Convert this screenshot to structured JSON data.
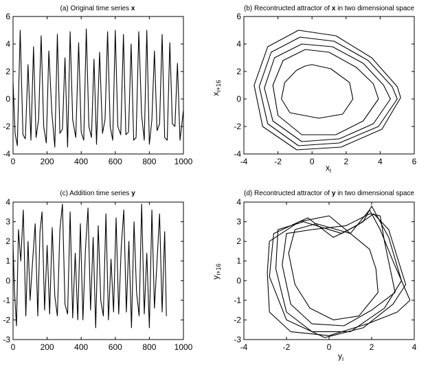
{
  "chart_data": [
    {
      "type": "line",
      "title_prefix": "(a) Original time series",
      "title_symbol": "x",
      "xlabel": "",
      "ylabel": "",
      "xlim": [
        0,
        1000
      ],
      "ylim": [
        -4,
        6
      ],
      "xticks": [
        0,
        200,
        400,
        600,
        800,
        1000
      ],
      "yticks": [
        -4,
        -2,
        0,
        2,
        4,
        6
      ],
      "grid": false,
      "series": [
        {
          "x": [
            0,
            12,
            25,
            42,
            58,
            72,
            88,
            105,
            120,
            135,
            150,
            165,
            180,
            195,
            210,
            228,
            245,
            260,
            275,
            290,
            305,
            320,
            335,
            350,
            368,
            385,
            400,
            415,
            430,
            445,
            460,
            475,
            490,
            508,
            525,
            540,
            555,
            570,
            585,
            600,
            615,
            632,
            648,
            662,
            678,
            693,
            708,
            722,
            738,
            755,
            770,
            785,
            800,
            815,
            830,
            845,
            860,
            875,
            890,
            905,
            920,
            935,
            950,
            965,
            980,
            1000
          ],
          "y": [
            1.2,
            -2.5,
            -3.4,
            5.0,
            -2.6,
            -2.9,
            2.5,
            -3.0,
            3.8,
            -2.8,
            -1.5,
            4.6,
            -2.0,
            -3.2,
            3.5,
            -1.0,
            -3.5,
            4.7,
            -2.5,
            -2.2,
            3.0,
            -3.5,
            4.9,
            -1.5,
            -2.8,
            4.1,
            -2.4,
            -3.0,
            5.1,
            -2.0,
            -2.8,
            2.9,
            -3.3,
            3.4,
            -2.5,
            -1.5,
            4.9,
            -2.0,
            -3.0,
            5.0,
            -2.0,
            -2.6,
            4.7,
            -2.6,
            -2.4,
            4.0,
            -3.0,
            -2.8,
            4.9,
            -1.2,
            -3.0,
            5.0,
            -3.3,
            -1.5,
            3.5,
            -2.3,
            -1.8,
            4.7,
            -2.8,
            -3.0,
            4.1,
            -1.8,
            -2.0,
            2.6,
            -3.0,
            -0.8
          ]
        }
      ]
    },
    {
      "type": "line",
      "title_prefix": "(b) Recontructed attractor of",
      "title_symbol": "x",
      "title_suffix": "in two dimensional space",
      "xlabel_main": "x",
      "xlabel_sub": "i",
      "ylabel_main": "x",
      "ylabel_sub": "i+16",
      "xlim": [
        -4,
        6
      ],
      "ylim": [
        -4,
        6
      ],
      "xticks": [
        -4,
        -2,
        0,
        2,
        4,
        6
      ],
      "yticks": [
        -4,
        -2,
        0,
        2,
        4,
        6
      ],
      "grid": false,
      "series": [
        {
          "x": [
            -0.4,
            0.0,
            1.1,
            2.2,
            2.4,
            1.8,
            0.4,
            -1.3,
            -1.8,
            -1.6,
            -0.9,
            -0.4
          ],
          "y": [
            2.4,
            2.5,
            2.2,
            1.2,
            0.0,
            -1.1,
            -1.4,
            -1.0,
            0.0,
            1.2,
            2.1,
            2.4
          ],
          "closed": true
        },
        {
          "x": [
            -0.4,
            1.0,
            2.6,
            3.6,
            3.9,
            3.0,
            1.4,
            -0.6,
            -2.0,
            -2.3,
            -1.7,
            -0.4
          ],
          "y": [
            3.6,
            3.4,
            2.3,
            1.1,
            0.0,
            -1.6,
            -2.6,
            -2.6,
            -1.2,
            1.0,
            2.8,
            3.6
          ],
          "closed": true
        },
        {
          "x": [
            -0.6,
            1.2,
            3.0,
            4.2,
            4.6,
            3.6,
            1.6,
            -0.6,
            -2.3,
            -2.8,
            -2.2,
            -0.6
          ],
          "y": [
            4.0,
            3.8,
            2.6,
            1.0,
            0.0,
            -1.8,
            -2.9,
            -3.1,
            -1.6,
            0.8,
            3.0,
            4.0
          ],
          "closed": true
        },
        {
          "x": [
            -0.7,
            1.3,
            3.3,
            4.7,
            5.0,
            3.9,
            1.6,
            -0.8,
            -2.6,
            -3.1,
            -2.4,
            -0.7
          ],
          "y": [
            4.5,
            4.2,
            2.8,
            0.9,
            0.0,
            -2.0,
            -3.2,
            -3.4,
            -1.8,
            0.9,
            3.4,
            4.5
          ],
          "closed": true
        },
        {
          "x": [
            -0.8,
            1.4,
            3.5,
            5.0,
            5.2,
            4.1,
            1.7,
            -0.9,
            -2.9,
            -3.4,
            -2.6,
            -0.8
          ],
          "y": [
            5.0,
            4.6,
            3.0,
            0.9,
            0.1,
            -2.2,
            -3.5,
            -3.7,
            -2.0,
            1.0,
            3.8,
            5.0
          ],
          "closed": true
        }
      ]
    },
    {
      "type": "line",
      "title_prefix": "(c) Addition time series",
      "title_symbol": "y",
      "xlabel": "",
      "ylabel": "",
      "xlim": [
        0,
        1000
      ],
      "ylim": [
        -3,
        4
      ],
      "xticks": [
        0,
        200,
        400,
        600,
        800,
        1000
      ],
      "yticks": [
        -3,
        -2,
        -1,
        0,
        1,
        2,
        3,
        4
      ],
      "grid": false,
      "series": [
        {
          "x": [
            0,
            8,
            20,
            32,
            45,
            60,
            75,
            88,
            100,
            115,
            130,
            145,
            158,
            170,
            185,
            200,
            215,
            230,
            245,
            260,
            275,
            290,
            305,
            320,
            335,
            350,
            365,
            380,
            395,
            410,
            425,
            440,
            455,
            470,
            485,
            500,
            515,
            530,
            545,
            560,
            575,
            590,
            605,
            620,
            635,
            650,
            665,
            680,
            695,
            710,
            725,
            740,
            755,
            770,
            785,
            800,
            815,
            830,
            845,
            860,
            875,
            890,
            900
          ],
          "y": [
            1.8,
            -0.5,
            -2.3,
            2.6,
            1.0,
            3.6,
            -1.8,
            2.0,
            -1.0,
            1.0,
            2.9,
            -1.8,
            2.5,
            3.5,
            -1.5,
            1.8,
            -1.7,
            2.7,
            -0.8,
            -1.8,
            2.6,
            3.9,
            -1.2,
            -1.7,
            3.5,
            -1.9,
            1.4,
            -2.0,
            2.9,
            -2.0,
            1.6,
            3.7,
            -1.5,
            2.2,
            -2.4,
            2.8,
            -1.0,
            -1.8,
            3.4,
            -2.0,
            1.1,
            -1.6,
            3.2,
            -1.7,
            1.7,
            3.6,
            -1.6,
            2.0,
            -2.4,
            3.0,
            -0.6,
            -1.8,
            3.9,
            -1.7,
            1.4,
            -2.4,
            3.6,
            -1.4,
            1.0,
            3.4,
            -1.6,
            2.5,
            -1.8
          ]
        }
      ]
    },
    {
      "type": "line",
      "title_prefix": "(d) Recontructed attractor of",
      "title_symbol": "y",
      "title_suffix": "in two dimensional space",
      "xlabel_main": "y",
      "xlabel_sub": "i",
      "ylabel_main": "y",
      "ylabel_sub": "i+16",
      "xlim": [
        -4,
        4
      ],
      "ylim": [
        -3,
        4
      ],
      "xticks": [
        -4,
        -2,
        0,
        2,
        4
      ],
      "yticks": [
        -3,
        -2,
        -1,
        0,
        1,
        2,
        3,
        4
      ],
      "grid": false,
      "series": [
        {
          "x": [
            -1.6,
            -0.6,
            1.0,
            1.9,
            2.2,
            2.3,
            1.4,
            0.2,
            -0.9,
            -1.6,
            -1.9,
            -1.6
          ],
          "y": [
            2.6,
            2.9,
            2.4,
            1.6,
            0.6,
            -0.6,
            -1.8,
            -2.0,
            -1.4,
            -0.2,
            1.4,
            2.6
          ],
          "closed": true
        },
        {
          "x": [
            -2.0,
            -0.8,
            0.8,
            1.9,
            2.4,
            2.6,
            3.1,
            2.0,
            0.7,
            -0.8,
            -1.8,
            -2.2,
            -2.0
          ],
          "y": [
            2.4,
            2.6,
            2.8,
            3.4,
            3.3,
            2.0,
            -0.6,
            -1.5,
            -2.3,
            -2.2,
            -1.2,
            0.8,
            2.4
          ],
          "closed": true
        },
        {
          "x": [
            -2.4,
            -1.2,
            0.6,
            1.6,
            2.0,
            2.8,
            3.4,
            2.6,
            1.0,
            -0.8,
            -2.0,
            -2.5,
            -2.4
          ],
          "y": [
            2.6,
            3.0,
            2.4,
            3.0,
            3.8,
            2.2,
            0.0,
            -1.4,
            -2.6,
            -2.6,
            -1.6,
            0.6,
            2.6
          ],
          "closed": true
        },
        {
          "x": [
            -2.6,
            -1.0,
            0.2,
            1.3,
            2.1,
            2.8,
            3.6,
            3.0,
            1.6,
            -0.2,
            -2.0,
            -2.8,
            -2.6
          ],
          "y": [
            2.4,
            3.2,
            2.2,
            2.8,
            3.4,
            2.6,
            -0.2,
            -1.2,
            -2.4,
            -2.9,
            -2.0,
            0.2,
            2.4
          ],
          "closed": true
        },
        {
          "x": [
            -2.8,
            -1.4,
            0.0,
            1.0,
            1.9,
            2.4,
            3.0,
            3.8,
            3.2,
            1.8,
            0.0,
            -1.8,
            -2.8,
            -2.9,
            -2.8
          ],
          "y": [
            2.0,
            3.0,
            3.3,
            2.4,
            3.6,
            2.6,
            1.0,
            -1.0,
            -1.6,
            -2.2,
            -2.8,
            -2.6,
            -1.6,
            0.4,
            2.0
          ],
          "closed": true
        }
      ]
    }
  ]
}
